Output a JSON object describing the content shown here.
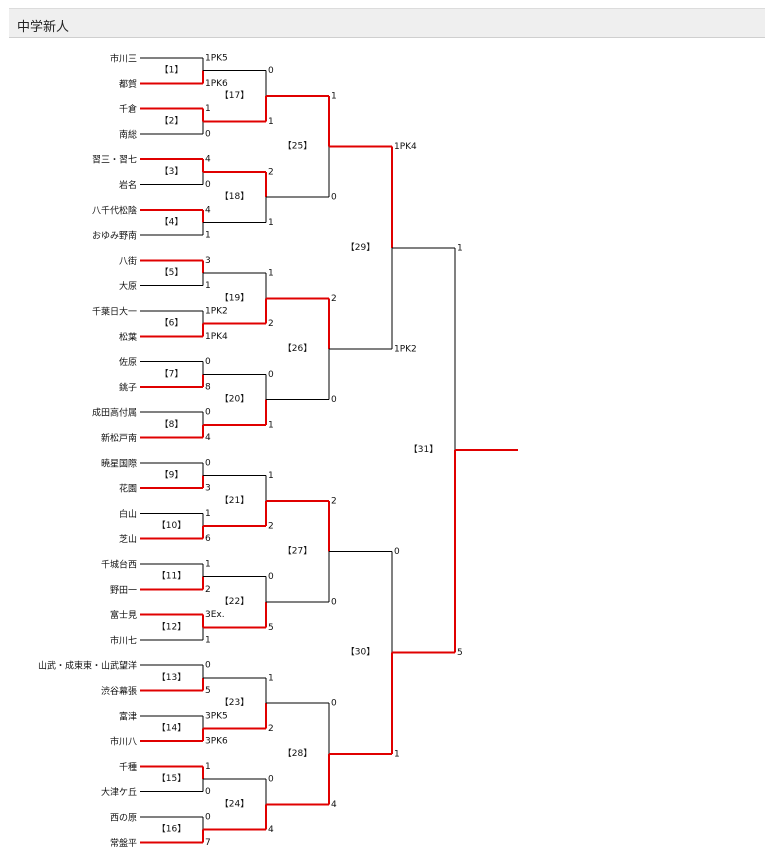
{
  "header": {
    "title": "中学新人"
  },
  "teams": [
    {
      "name": "市川三",
      "score": "1PK5"
    },
    {
      "name": "都賀",
      "score": "1PK6"
    },
    {
      "name": "千倉",
      "score": "1"
    },
    {
      "name": "南総",
      "score": "0"
    },
    {
      "name": "習三・習七",
      "score": "4"
    },
    {
      "name": "岩名",
      "score": "0"
    },
    {
      "name": "八千代松陰",
      "score": "4"
    },
    {
      "name": "おゆみ野南",
      "score": "1"
    },
    {
      "name": "八街",
      "score": "3"
    },
    {
      "name": "大原",
      "score": "1"
    },
    {
      "name": "千葉日大一",
      "score": "1PK2"
    },
    {
      "name": "松葉",
      "score": "1PK4"
    },
    {
      "name": "佐原",
      "score": "0"
    },
    {
      "name": "銚子",
      "score": "8"
    },
    {
      "name": "成田高付属",
      "score": "0"
    },
    {
      "name": "新松戸南",
      "score": "4"
    },
    {
      "name": "暁星国際",
      "score": "0"
    },
    {
      "name": "花園",
      "score": "3"
    },
    {
      "name": "白山",
      "score": "1"
    },
    {
      "name": "芝山",
      "score": "6"
    },
    {
      "name": "千城台西",
      "score": "1"
    },
    {
      "name": "野田一",
      "score": "2"
    },
    {
      "name": "富士見",
      "score": "3Ex."
    },
    {
      "name": "市川七",
      "score": "1"
    },
    {
      "name": "山武・成東東・山武望洋",
      "score": "0"
    },
    {
      "name": "渋谷幕張",
      "score": "5"
    },
    {
      "name": "富津",
      "score": "3PK5"
    },
    {
      "name": "市川八",
      "score": "3PK6"
    },
    {
      "name": "千種",
      "score": "1"
    },
    {
      "name": "大津ケ丘",
      "score": "0"
    },
    {
      "name": "西の原",
      "score": "0"
    },
    {
      "name": "常盤平",
      "score": "7"
    }
  ],
  "rounds": [
    {
      "matches": [
        {
          "label": "【1】",
          "winner": "bottom"
        },
        {
          "label": "【2】",
          "winner": "top"
        },
        {
          "label": "【3】",
          "winner": "top"
        },
        {
          "label": "【4】",
          "winner": "top"
        },
        {
          "label": "【5】",
          "winner": "top"
        },
        {
          "label": "【6】",
          "winner": "bottom"
        },
        {
          "label": "【7】",
          "winner": "bottom"
        },
        {
          "label": "【8】",
          "winner": "bottom"
        },
        {
          "label": "【9】",
          "winner": "bottom"
        },
        {
          "label": "【10】",
          "winner": "bottom"
        },
        {
          "label": "【11】",
          "winner": "bottom"
        },
        {
          "label": "【12】",
          "winner": "top"
        },
        {
          "label": "【13】",
          "winner": "bottom"
        },
        {
          "label": "【14】",
          "winner": "bottom"
        },
        {
          "label": "【15】",
          "winner": "top"
        },
        {
          "label": "【16】",
          "winner": "bottom"
        }
      ]
    },
    {
      "matches": [
        {
          "label": "【17】",
          "top_score": "0",
          "bottom_score": "1",
          "winner": "bottom"
        },
        {
          "label": "【18】",
          "top_score": "2",
          "bottom_score": "1",
          "winner": "top"
        },
        {
          "label": "【19】",
          "top_score": "1",
          "bottom_score": "2",
          "winner": "bottom"
        },
        {
          "label": "【20】",
          "top_score": "0",
          "bottom_score": "1",
          "winner": "bottom"
        },
        {
          "label": "【21】",
          "top_score": "1",
          "bottom_score": "2",
          "winner": "bottom"
        },
        {
          "label": "【22】",
          "top_score": "0",
          "bottom_score": "5",
          "winner": "bottom"
        },
        {
          "label": "【23】",
          "top_score": "1",
          "bottom_score": "2",
          "winner": "bottom"
        },
        {
          "label": "【24】",
          "top_score": "0",
          "bottom_score": "4",
          "winner": "bottom"
        }
      ]
    },
    {
      "matches": [
        {
          "label": "【25】",
          "top_score": "1",
          "bottom_score": "0",
          "winner": "top"
        },
        {
          "label": "【26】",
          "top_score": "2",
          "bottom_score": "0",
          "winner": "top"
        },
        {
          "label": "【27】",
          "top_score": "2",
          "bottom_score": "0",
          "winner": "top"
        },
        {
          "label": "【28】",
          "top_score": "0",
          "bottom_score": "4",
          "winner": "bottom"
        }
      ]
    },
    {
      "matches": [
        {
          "label": "【29】",
          "top_score": "1PK4",
          "bottom_score": "1PK2",
          "winner": "top"
        },
        {
          "label": "【30】",
          "top_score": "0",
          "bottom_score": "1",
          "winner": "bottom"
        }
      ]
    },
    {
      "matches": [
        {
          "label": "【31】",
          "top_score": "1",
          "bottom_score": "5",
          "winner": "bottom"
        }
      ]
    }
  ],
  "colors": {
    "win_line": "#e00000",
    "line": "#000000",
    "header_bg": "#efefef"
  }
}
